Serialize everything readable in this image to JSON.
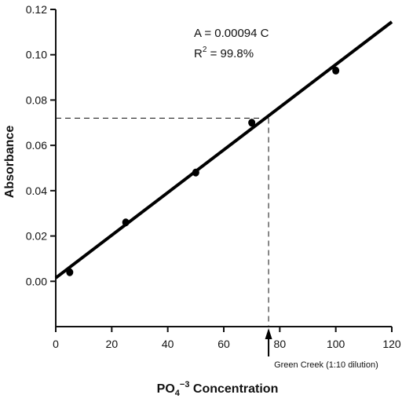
{
  "chart_data": {
    "type": "scatter",
    "xlabel_main": "PO",
    "xlabel_sub": "4",
    "xlabel_sup": "−3",
    "xlabel_rest": " Concentration",
    "ylabel": "Absorbance",
    "xlim": [
      0,
      120
    ],
    "ylim": [
      -0.02,
      0.12
    ],
    "x_ticks": [
      0,
      20,
      40,
      60,
      80,
      100,
      120
    ],
    "x_tick_labels": [
      "0",
      "20",
      "40",
      "60",
      "80",
      "100",
      "120"
    ],
    "y_ticks": [
      0.0,
      0.02,
      0.04,
      0.06,
      0.08,
      0.1,
      0.12
    ],
    "y_tick_labels": [
      "0.00",
      "0.02",
      "0.04",
      "0.06",
      "0.08",
      "0.10",
      "0.12"
    ],
    "points": [
      {
        "x": 5,
        "y": 0.004
      },
      {
        "x": 25,
        "y": 0.026
      },
      {
        "x": 50,
        "y": 0.048
      },
      {
        "x": 70,
        "y": 0.07
      },
      {
        "x": 100,
        "y": 0.093
      }
    ],
    "fit_line": {
      "x0": 0,
      "y0": 0.0015,
      "x1": 120,
      "y1": 0.1145
    },
    "equation": "A = 0.00094 C",
    "r2_prefix": "R",
    "r2_sup": "2",
    "r2_rest": " = 99.8%",
    "sample": {
      "x": 76,
      "y": 0.072,
      "label": "Green Creek (1:10 dilution)"
    },
    "grid": false
  }
}
